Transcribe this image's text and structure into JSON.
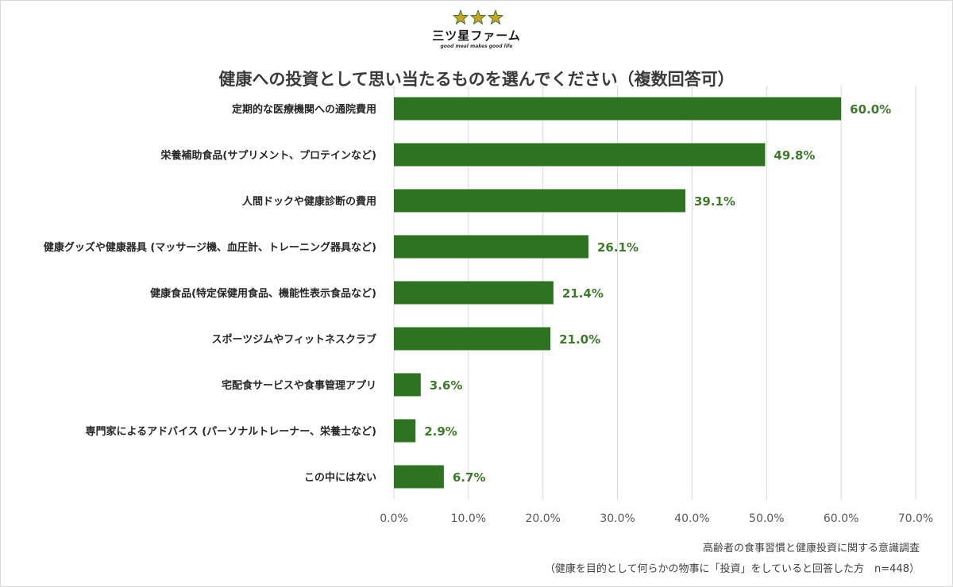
{
  "logo": {
    "name": "三ツ星ファーム",
    "tagline": "good meal makes good life",
    "icon": "three-stars-icon"
  },
  "colors": {
    "bar": "#2e7322",
    "value_label": "#3e7a2b",
    "star": "#c9a227",
    "grid": "#d9d9d9"
  },
  "chart_data": {
    "type": "bar",
    "orientation": "horizontal",
    "title": "健康への投資として思い当たるものを選んでください（複数回答可）",
    "categories": [
      "定期的な医療機関への通院費用",
      "栄養補助食品(サプリメント、プロテインなど)",
      "人間ドックや健康診断の費用",
      "健康グッズや健康器具 (マッサージ機、血圧計、トレーニング器具など)",
      "健康食品(特定保健用食品、機能性表示食品など)",
      "スポーツジムやフィットネスクラブ",
      "宅配食サービスや食事管理アプリ",
      "専門家によるアドバイス (パーソナルトレーナー、栄養士など)",
      "この中にはない"
    ],
    "values": [
      60.0,
      49.8,
      39.1,
      26.1,
      21.4,
      21.0,
      3.6,
      2.9,
      6.7
    ],
    "value_labels": [
      "60.0%",
      "49.8%",
      "39.1%",
      "26.1%",
      "21.4%",
      "21.0%",
      "3.6%",
      "2.9%",
      "6.7%"
    ],
    "xlim": [
      0,
      70
    ],
    "xticks": [
      "0.0%",
      "10.0%",
      "20.0%",
      "30.0%",
      "40.0%",
      "50.0%",
      "60.0%",
      "70.0%"
    ],
    "grid": true,
    "xlabel": "",
    "ylabel": ""
  },
  "footnote": {
    "line1": "高齢者の食事習慣と健康投資に関する意識調査",
    "line2": "（健康を目的として何らかの物事に「投資」をしていると回答した方　n=448）"
  }
}
